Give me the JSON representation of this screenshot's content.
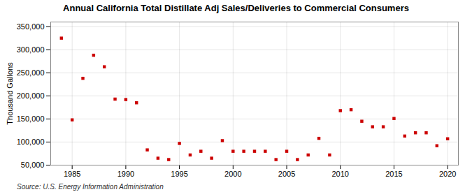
{
  "chart_data": {
    "type": "scatter",
    "title": "Annual California Total Distillate Adj Sales/Deliveries to Commercial Consumers",
    "ylabel": "Thousand Gallons",
    "source": "Source: U.S. Energy Information Administration",
    "x": [
      1984,
      1985,
      1986,
      1987,
      1988,
      1989,
      1990,
      1991,
      1992,
      1993,
      1994,
      1995,
      1996,
      1997,
      1998,
      1999,
      2000,
      2001,
      2002,
      2003,
      2004,
      2005,
      2006,
      2007,
      2008,
      2009,
      2010,
      2011,
      2012,
      2013,
      2014,
      2015,
      2016,
      2017,
      2018,
      2019,
      2020
    ],
    "values": [
      325000,
      148000,
      238000,
      288000,
      263000,
      193000,
      192000,
      185000,
      83000,
      65000,
      62000,
      97000,
      72000,
      80000,
      65000,
      103000,
      80000,
      80000,
      80000,
      80000,
      62000,
      80000,
      62000,
      72000,
      108000,
      72000,
      168000,
      170000,
      145000,
      133000,
      133000,
      151000,
      113000,
      120000,
      120000,
      92000,
      107000
    ],
    "color": "#cc0000",
    "marker": "square",
    "xlim": [
      1983,
      2021
    ],
    "xticks": [
      1985,
      1990,
      1995,
      2000,
      2005,
      2010,
      2015,
      2020
    ],
    "ylim": [
      50000,
      360000
    ],
    "yticks": [
      {
        "value": 50000,
        "label": "50,000"
      },
      {
        "value": 100000,
        "label": "100,000"
      },
      {
        "value": 150000,
        "label": "150,000"
      },
      {
        "value": 200000,
        "label": "200,000"
      },
      {
        "value": 250000,
        "label": "250,000"
      },
      {
        "value": 300000,
        "label": "300,000"
      },
      {
        "value": 350000,
        "label": "350,000"
      }
    ],
    "grid": true
  }
}
